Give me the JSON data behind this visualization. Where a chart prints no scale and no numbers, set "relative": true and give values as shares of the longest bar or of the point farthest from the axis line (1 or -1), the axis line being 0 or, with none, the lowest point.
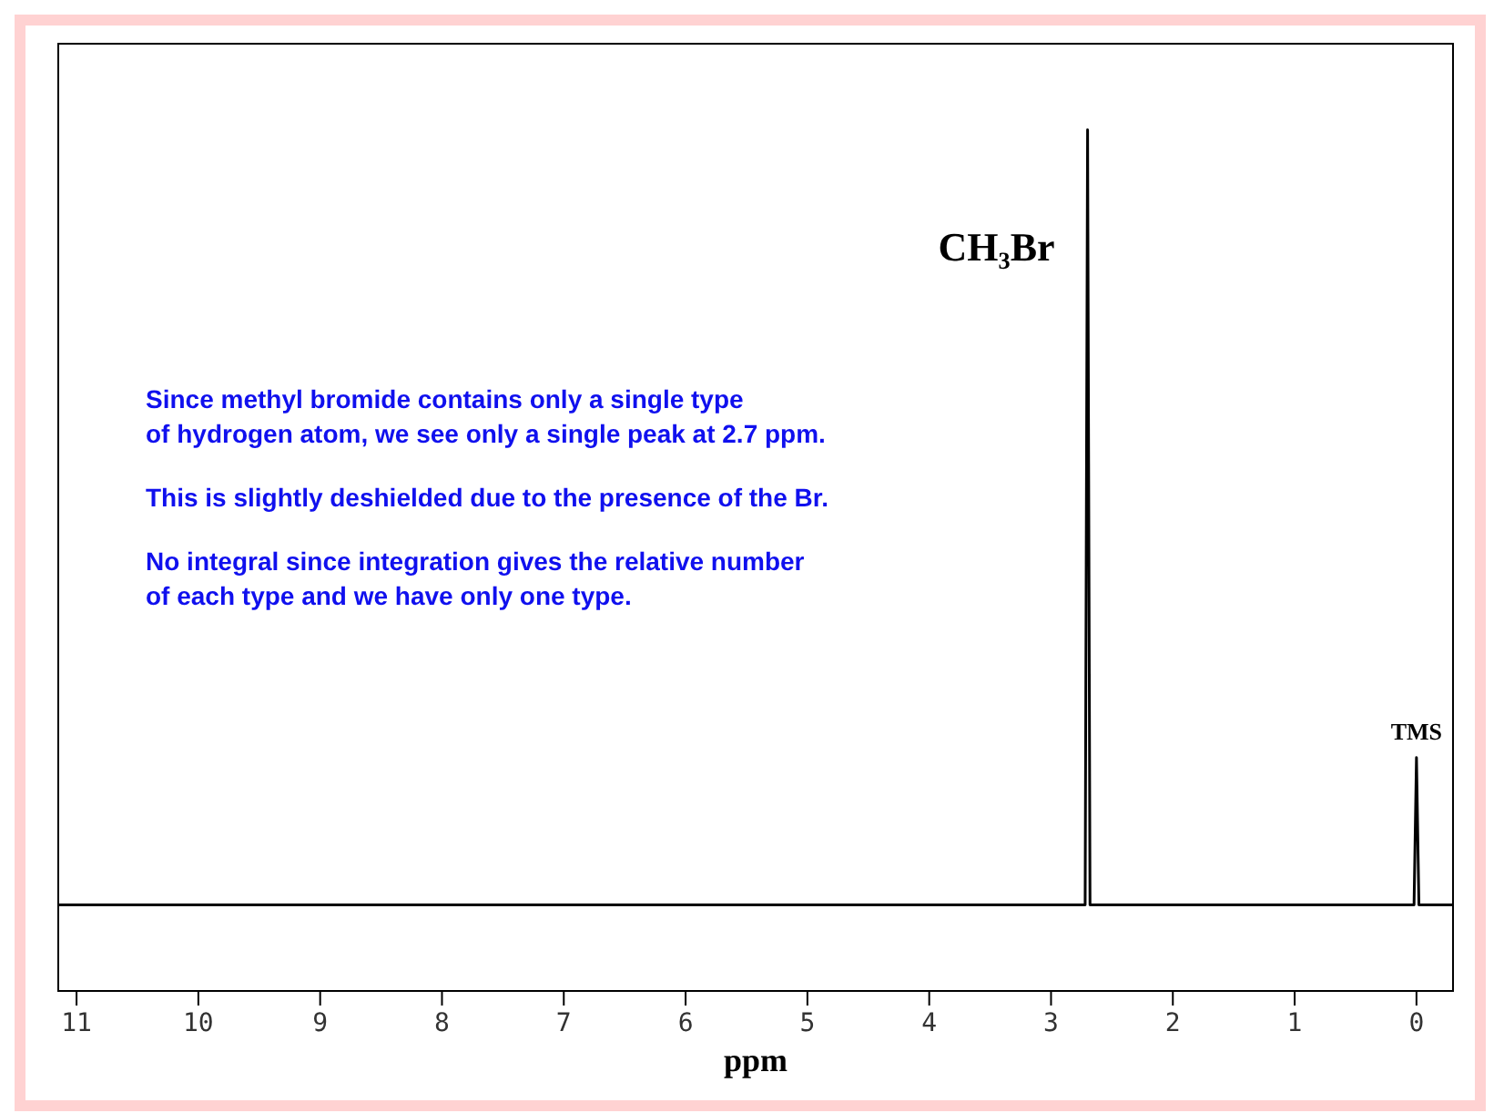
{
  "chart_data": {
    "type": "line",
    "xlabel": "ppm",
    "relative": true,
    "x": [
      11.15,
      2.72,
      2.7,
      2.68,
      0.02,
      0,
      -0.02,
      -0.3
    ],
    "series": [
      {
        "color": "#000000",
        "values": [
          0,
          0,
          1,
          0,
          0,
          0.19,
          0,
          0
        ]
      }
    ],
    "xlim": [
      11.15,
      -0.3
    ],
    "xticks": [
      11,
      10,
      9,
      8,
      7,
      6,
      5,
      4,
      3,
      2,
      1,
      0
    ],
    "marker": "none",
    "line_style": "solid",
    "annotations": [
      {
        "text": "CH₃Br",
        "x": 2.7,
        "y": 0.85
      },
      {
        "text": "TMS",
        "x": 0,
        "y": 0.19
      },
      "Since methyl bromide contains only a single type\nof hydrogen atom, we see only a single peak at 2.7 ppm.",
      "This is slightly deshielded due to the presence of the Br.",
      "No integral since integration gives the relative number\nof each type and we have only one type."
    ]
  }
}
